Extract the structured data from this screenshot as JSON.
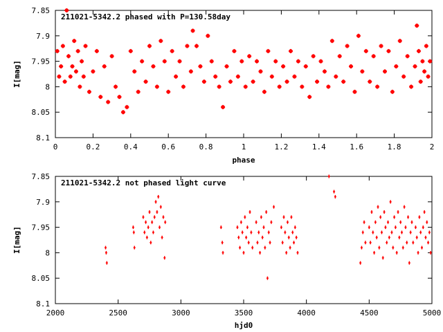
{
  "chart_data": [
    {
      "type": "scatter",
      "title": "211021-5342.2 phased with P=130.58day",
      "xlabel": "phase",
      "ylabel": "I[mag]",
      "xlim": [
        0,
        2
      ],
      "ylim": [
        7.85,
        8.1
      ],
      "y_inverted": true,
      "x_ticks": [
        0,
        0.2,
        0.4,
        0.6,
        0.8,
        1,
        1.2,
        1.4,
        1.6,
        1.8,
        2
      ],
      "x_tick_labels": [
        "0",
        "0.2",
        "0.4",
        "0.6",
        "0.8",
        "1",
        "1.2",
        "1.4",
        "1.6",
        "1.8",
        "2"
      ],
      "y_ticks": [
        7.85,
        7.9,
        7.95,
        8,
        8.05,
        8.1
      ],
      "y_tick_labels": [
        "7.85",
        "7.9",
        "7.95",
        "8",
        "8.05",
        "8.1"
      ],
      "marker": "star",
      "grid": false,
      "series": [
        {
          "color": "#ff0000",
          "points": [
            [
              0.01,
              7.93
            ],
            [
              0.02,
              7.98
            ],
            [
              0.03,
              7.96
            ],
            [
              0.04,
              7.92
            ],
            [
              0.05,
              7.99
            ],
            [
              0.06,
              7.85
            ],
            [
              0.07,
              7.94
            ],
            [
              0.08,
              7.98
            ],
            [
              0.09,
              7.96
            ],
            [
              0.1,
              7.91
            ],
            [
              0.11,
              7.97
            ],
            [
              0.12,
              7.93
            ],
            [
              0.13,
              8.0
            ],
            [
              0.14,
              7.95
            ],
            [
              0.15,
              7.98
            ],
            [
              0.16,
              7.92
            ],
            [
              0.18,
              8.01
            ],
            [
              0.2,
              7.97
            ],
            [
              0.22,
              7.93
            ],
            [
              0.24,
              8.02
            ],
            [
              0.26,
              7.96
            ],
            [
              0.28,
              8.03
            ],
            [
              0.3,
              7.94
            ],
            [
              0.32,
              8.0
            ],
            [
              0.34,
              8.02
            ],
            [
              0.36,
              8.05
            ],
            [
              0.38,
              8.04
            ],
            [
              0.4,
              7.93
            ],
            [
              0.42,
              7.97
            ],
            [
              0.44,
              8.01
            ],
            [
              0.46,
              7.95
            ],
            [
              0.48,
              7.99
            ],
            [
              0.5,
              7.92
            ],
            [
              0.52,
              7.96
            ],
            [
              0.54,
              8.0
            ],
            [
              0.56,
              7.91
            ],
            [
              0.58,
              7.95
            ],
            [
              0.6,
              8.01
            ],
            [
              0.62,
              7.93
            ],
            [
              0.64,
              7.98
            ],
            [
              0.66,
              7.95
            ],
            [
              0.68,
              8.0
            ],
            [
              0.7,
              7.92
            ],
            [
              0.72,
              7.97
            ],
            [
              0.73,
              7.89
            ],
            [
              0.75,
              7.92
            ],
            [
              0.77,
              7.96
            ],
            [
              0.79,
              7.99
            ],
            [
              0.81,
              7.9
            ],
            [
              0.83,
              7.95
            ],
            [
              0.85,
              7.98
            ],
            [
              0.87,
              8.0
            ],
            [
              0.89,
              8.04
            ],
            [
              0.91,
              7.96
            ],
            [
              0.93,
              7.99
            ],
            [
              0.95,
              7.93
            ],
            [
              0.97,
              7.98
            ],
            [
              0.99,
              7.95
            ],
            [
              1.01,
              8.0
            ],
            [
              1.03,
              7.94
            ],
            [
              1.05,
              7.99
            ],
            [
              1.07,
              7.95
            ],
            [
              1.09,
              7.97
            ],
            [
              1.11,
              8.01
            ],
            [
              1.13,
              7.93
            ],
            [
              1.15,
              7.98
            ],
            [
              1.17,
              7.95
            ],
            [
              1.19,
              8.0
            ],
            [
              1.21,
              7.96
            ],
            [
              1.23,
              7.99
            ],
            [
              1.25,
              7.93
            ],
            [
              1.27,
              7.98
            ],
            [
              1.29,
              7.95
            ],
            [
              1.31,
              8.0
            ],
            [
              1.33,
              7.96
            ],
            [
              1.35,
              8.02
            ],
            [
              1.37,
              7.94
            ],
            [
              1.39,
              7.99
            ],
            [
              1.41,
              7.95
            ],
            [
              1.43,
              7.97
            ],
            [
              1.45,
              8.0
            ],
            [
              1.47,
              7.91
            ],
            [
              1.49,
              7.98
            ],
            [
              1.51,
              7.94
            ],
            [
              1.53,
              7.99
            ],
            [
              1.55,
              7.92
            ],
            [
              1.57,
              7.96
            ],
            [
              1.59,
              8.01
            ],
            [
              1.61,
              7.9
            ],
            [
              1.63,
              7.97
            ],
            [
              1.65,
              7.93
            ],
            [
              1.67,
              7.99
            ],
            [
              1.69,
              7.94
            ],
            [
              1.71,
              8.0
            ],
            [
              1.73,
              7.92
            ],
            [
              1.75,
              7.97
            ],
            [
              1.77,
              7.93
            ],
            [
              1.79,
              8.01
            ],
            [
              1.81,
              7.96
            ],
            [
              1.83,
              7.91
            ],
            [
              1.85,
              7.98
            ],
            [
              1.87,
              7.94
            ],
            [
              1.89,
              8.0
            ],
            [
              1.91,
              7.96
            ],
            [
              1.92,
              7.88
            ],
            [
              1.93,
              7.93
            ],
            [
              1.94,
              7.99
            ],
            [
              1.95,
              7.95
            ],
            [
              1.96,
              7.97
            ],
            [
              1.97,
              7.92
            ],
            [
              1.98,
              7.98
            ],
            [
              1.99,
              7.95
            ]
          ]
        }
      ]
    },
    {
      "type": "scatter",
      "title": "211021-5342.2 not phased light curve",
      "xlabel": "hjd0",
      "ylabel": "I[mag]",
      "xlim": [
        2000,
        5000
      ],
      "ylim": [
        7.85,
        8.1
      ],
      "y_inverted": true,
      "x_ticks": [
        2000,
        2500,
        3000,
        3500,
        4000,
        4500,
        5000
      ],
      "x_tick_labels": [
        "2000",
        "2500",
        "3000",
        "3500",
        "4000",
        "4500",
        "5000"
      ],
      "y_ticks": [
        7.85,
        7.9,
        7.95,
        8,
        8.05,
        8.1
      ],
      "y_tick_labels": [
        "7.85",
        "7.9",
        "7.95",
        "8",
        "8.05",
        "8.1"
      ],
      "marker": "plus",
      "grid": false,
      "series": [
        {
          "color": "#ff0000",
          "points": [
            [
              2400,
              7.99
            ],
            [
              2405,
              8.0
            ],
            [
              2410,
              8.02
            ],
            [
              2620,
              7.95
            ],
            [
              2625,
              7.96
            ],
            [
              2630,
              7.99
            ],
            [
              2700,
              7.93
            ],
            [
              2710,
              7.96
            ],
            [
              2720,
              7.94
            ],
            [
              2730,
              7.97
            ],
            [
              2740,
              7.95
            ],
            [
              2750,
              7.92
            ],
            [
              2760,
              7.98
            ],
            [
              2770,
              7.94
            ],
            [
              2780,
              7.96
            ],
            [
              2790,
              7.93
            ],
            [
              2800,
              7.9
            ],
            [
              2810,
              7.92
            ],
            [
              2820,
              7.89
            ],
            [
              2830,
              7.95
            ],
            [
              2840,
              7.91
            ],
            [
              2850,
              7.97
            ],
            [
              2860,
              7.93
            ],
            [
              2870,
              8.01
            ],
            [
              2875,
              7.94
            ],
            [
              3320,
              7.95
            ],
            [
              3330,
              7.98
            ],
            [
              3335,
              8.0
            ],
            [
              3450,
              7.95
            ],
            [
              3460,
              7.97
            ],
            [
              3470,
              7.99
            ],
            [
              3480,
              7.94
            ],
            [
              3490,
              7.96
            ],
            [
              3500,
              8.0
            ],
            [
              3510,
              7.93
            ],
            [
              3520,
              7.97
            ],
            [
              3530,
              7.95
            ],
            [
              3540,
              7.98
            ],
            [
              3550,
              7.92
            ],
            [
              3560,
              7.96
            ],
            [
              3570,
              7.99
            ],
            [
              3600,
              7.94
            ],
            [
              3610,
              7.98
            ],
            [
              3620,
              7.96
            ],
            [
              3630,
              8.0
            ],
            [
              3640,
              7.93
            ],
            [
              3650,
              7.97
            ],
            [
              3660,
              7.95
            ],
            [
              3670,
              7.99
            ],
            [
              3680,
              7.92
            ],
            [
              3690,
              8.05
            ],
            [
              3700,
              7.96
            ],
            [
              3710,
              7.98
            ],
            [
              3720,
              7.94
            ],
            [
              3740,
              7.91
            ],
            [
              3800,
              7.95
            ],
            [
              3810,
              7.98
            ],
            [
              3820,
              7.93
            ],
            [
              3830,
              7.96
            ],
            [
              3840,
              8.0
            ],
            [
              3850,
              7.94
            ],
            [
              3860,
              7.97
            ],
            [
              3870,
              7.99
            ],
            [
              3880,
              7.93
            ],
            [
              3890,
              7.96
            ],
            [
              3900,
              7.98
            ],
            [
              3910,
              7.95
            ],
            [
              3920,
              7.97
            ],
            [
              3930,
              8.0
            ],
            [
              4180,
              7.85
            ],
            [
              4220,
              7.88
            ],
            [
              4230,
              7.89
            ],
            [
              4430,
              8.02
            ],
            [
              4440,
              7.99
            ],
            [
              4450,
              7.96
            ],
            [
              4460,
              7.94
            ],
            [
              4470,
              7.98
            ],
            [
              4500,
              7.95
            ],
            [
              4510,
              7.98
            ],
            [
              4520,
              7.92
            ],
            [
              4530,
              7.96
            ],
            [
              4540,
              8.0
            ],
            [
              4550,
              7.94
            ],
            [
              4560,
              7.97
            ],
            [
              4570,
              7.91
            ],
            [
              4580,
              7.99
            ],
            [
              4590,
              7.93
            ],
            [
              4600,
              7.96
            ],
            [
              4610,
              8.01
            ],
            [
              4620,
              7.92
            ],
            [
              4630,
              7.95
            ],
            [
              4640,
              7.98
            ],
            [
              4650,
              7.94
            ],
            [
              4660,
              7.97
            ],
            [
              4670,
              7.9
            ],
            [
              4680,
              7.96
            ],
            [
              4690,
              7.99
            ],
            [
              4700,
              7.93
            ],
            [
              4710,
              7.95
            ],
            [
              4720,
              8.0
            ],
            [
              4730,
              7.92
            ],
            [
              4740,
              7.97
            ],
            [
              4750,
              7.94
            ],
            [
              4760,
              7.96
            ],
            [
              4770,
              7.99
            ],
            [
              4780,
              7.91
            ],
            [
              4790,
              7.95
            ],
            [
              4800,
              7.98
            ],
            [
              4810,
              7.93
            ],
            [
              4820,
              8.02
            ],
            [
              4830,
              7.96
            ],
            [
              4840,
              7.94
            ],
            [
              4850,
              7.98
            ],
            [
              4870,
              7.95
            ],
            [
              4880,
              7.97
            ],
            [
              4890,
              8.0
            ],
            [
              4900,
              7.93
            ],
            [
              4910,
              7.96
            ],
            [
              4920,
              7.99
            ],
            [
              4930,
              7.95
            ],
            [
              4940,
              7.92
            ],
            [
              4950,
              7.97
            ],
            [
              4960,
              7.94
            ],
            [
              4970,
              7.98
            ],
            [
              4980,
              7.96
            ],
            [
              4990,
              8.0
            ]
          ]
        }
      ]
    }
  ]
}
